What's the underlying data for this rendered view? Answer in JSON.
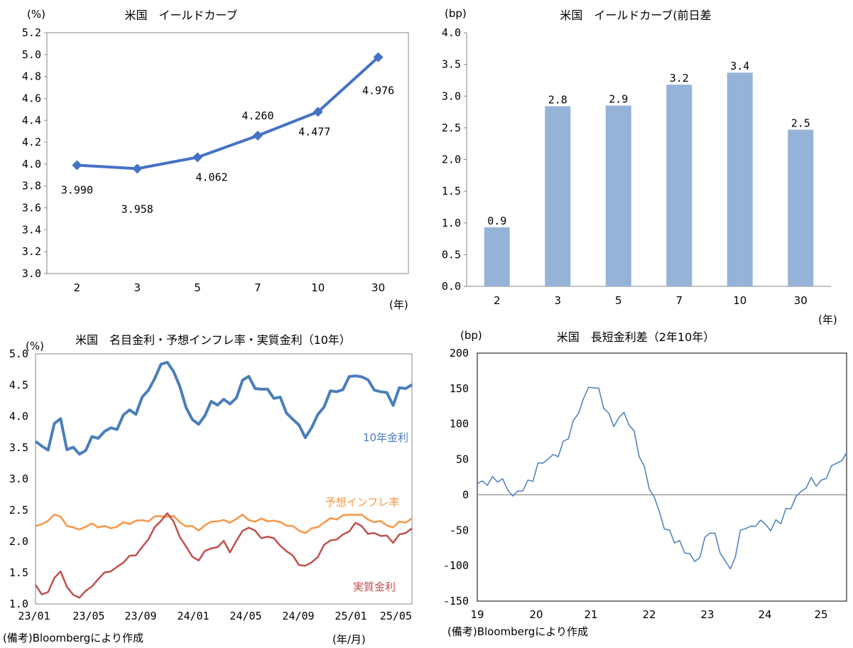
{
  "chart_data": [
    {
      "type": "line",
      "title": "米国　イールドカーブ",
      "ylabel": "(%)",
      "xlabel": "(年)",
      "categories": [
        "2",
        "3",
        "5",
        "7",
        "10",
        "30"
      ],
      "series": [
        {
          "values": [
            3.99,
            3.958,
            4.062,
            4.26,
            4.477,
            4.976
          ]
        }
      ],
      "data_labels": [
        "3.990",
        "3.958",
        "4.062",
        "4.260",
        "4.477",
        "4.976"
      ],
      "ylim": [
        3.0,
        5.2
      ],
      "yticks": [
        "3.0",
        "3.2",
        "3.4",
        "3.6",
        "3.8",
        "4.0",
        "4.2",
        "4.4",
        "4.6",
        "4.8",
        "5.0",
        "5.2"
      ],
      "color": "#4472C4",
      "grid": false
    },
    {
      "type": "bar",
      "title": "米国　イールドカーブ(前日差",
      "ylabel": "(bp)",
      "xlabel": "(年)",
      "categories": [
        "2",
        "3",
        "5",
        "7",
        "10",
        "30"
      ],
      "values": [
        0.93,
        2.84,
        2.85,
        3.18,
        3.37,
        2.47
      ],
      "data_labels": [
        "0.9",
        "2.8",
        "2.9",
        "3.2",
        "3.4",
        "2.5"
      ],
      "ylim": [
        0.0,
        4.0
      ],
      "yticks": [
        "0.0",
        "0.5",
        "1.0",
        "1.5",
        "2.0",
        "2.5",
        "3.0",
        "3.5",
        "4.0"
      ],
      "color": "#95B3D7",
      "grid": false
    },
    {
      "type": "line",
      "title": "米国　名目金利・予想インフレ率・実質金利（10年）",
      "ylabel": "(%)",
      "xlabel": "(年/月)",
      "xticks": [
        "23/01",
        "23/05",
        "23/09",
        "24/01",
        "24/05",
        "24/09",
        "25/01",
        "25/05"
      ],
      "yticks": [
        "1.0",
        "1.5",
        "2.0",
        "2.5",
        "3.0",
        "3.5",
        "4.0",
        "4.5",
        "5.0"
      ],
      "ylim": [
        1.0,
        5.0
      ],
      "series": [
        {
          "name": "10年金利",
          "color": "#4A7EBB",
          "values": [
            3.6,
            3.48,
            3.52,
            3.85,
            3.95,
            3.52,
            3.45,
            3.42,
            3.48,
            3.62,
            3.7,
            3.75,
            3.78,
            3.85,
            3.98,
            4.1,
            4.08,
            4.25,
            4.45,
            4.62,
            4.78,
            4.92,
            4.7,
            4.45,
            4.2,
            3.9,
            3.88,
            4.05,
            4.18,
            4.22,
            4.28,
            4.15,
            4.35,
            4.55,
            4.62,
            4.5,
            4.38,
            4.45,
            4.32,
            4.25,
            4.1,
            3.95,
            3.82,
            3.72,
            3.78,
            4.02,
            4.2,
            4.35,
            4.42,
            4.45,
            4.58,
            4.7,
            4.62,
            4.55,
            4.48,
            4.35,
            4.38,
            4.22,
            4.4,
            4.48,
            4.52
          ]
        },
        {
          "name": "予想インフレ率",
          "color": "#F79646",
          "values": [
            2.22,
            2.28,
            2.35,
            2.4,
            2.42,
            2.25,
            2.2,
            2.22,
            2.22,
            2.28,
            2.25,
            2.22,
            2.22,
            2.25,
            2.28,
            2.3,
            2.33,
            2.32,
            2.35,
            2.38,
            2.4,
            2.42,
            2.38,
            2.32,
            2.25,
            2.22,
            2.2,
            2.25,
            2.3,
            2.35,
            2.32,
            2.3,
            2.38,
            2.4,
            2.36,
            2.32,
            2.34,
            2.35,
            2.32,
            2.3,
            2.28,
            2.22,
            2.18,
            2.15,
            2.18,
            2.25,
            2.3,
            2.35,
            2.38,
            2.4,
            2.42,
            2.45,
            2.4,
            2.36,
            2.32,
            2.3,
            2.28,
            2.22,
            2.3,
            2.33,
            2.35
          ]
        },
        {
          "name": "実質金利",
          "color": "#C0504D",
          "values": [
            1.28,
            1.18,
            1.18,
            1.4,
            1.55,
            1.25,
            1.15,
            1.12,
            1.18,
            1.3,
            1.4,
            1.48,
            1.55,
            1.58,
            1.65,
            1.8,
            1.75,
            1.92,
            2.05,
            2.2,
            2.35,
            2.45,
            2.3,
            2.1,
            1.9,
            1.75,
            1.72,
            1.82,
            1.9,
            1.92,
            1.98,
            1.85,
            2.0,
            2.15,
            2.25,
            2.15,
            2.05,
            2.1,
            2.02,
            1.95,
            1.85,
            1.75,
            1.65,
            1.6,
            1.65,
            1.78,
            1.92,
            2.02,
            2.05,
            2.08,
            2.18,
            2.3,
            2.22,
            2.15,
            2.12,
            2.08,
            2.12,
            1.95,
            2.12,
            2.15,
            2.18
          ]
        }
      ],
      "grid": false
    },
    {
      "type": "line",
      "title": "米国　長短金利差（2年10年）",
      "ylabel": "(bp)",
      "xticks": [
        "19",
        "20",
        "21",
        "22",
        "23",
        "24",
        "25"
      ],
      "yticks": [
        "-150",
        "-100",
        "-50",
        "0",
        "50",
        "100",
        "150",
        "200"
      ],
      "ylim": [
        -150,
        200
      ],
      "series": [
        {
          "color": "#4A7EBB",
          "values": [
            16,
            17,
            18,
            20,
            24,
            18,
            10,
            -2,
            3,
            10,
            15,
            25,
            40,
            48,
            50,
            55,
            58,
            70,
            85,
            100,
            118,
            135,
            150,
            155,
            145,
            128,
            110,
            100,
            108,
            115,
            102,
            85,
            60,
            35,
            12,
            -5,
            -25,
            -45,
            -55,
            -62,
            -70,
            -78,
            -85,
            -95,
            -85,
            -65,
            -48,
            -60,
            -78,
            -95,
            -105,
            -85,
            -55,
            -42,
            -50,
            -40,
            -38,
            -42,
            -48,
            -40,
            -35,
            -25,
            -15,
            -5,
            5,
            12,
            20,
            18,
            15,
            28,
            38,
            45,
            50,
            55
          ]
        }
      ],
      "grid": false
    }
  ],
  "notes": {
    "bottom_left": "(備考)Bloombergにより作成",
    "bottom_right": "(備考)Bloombergにより作成"
  }
}
